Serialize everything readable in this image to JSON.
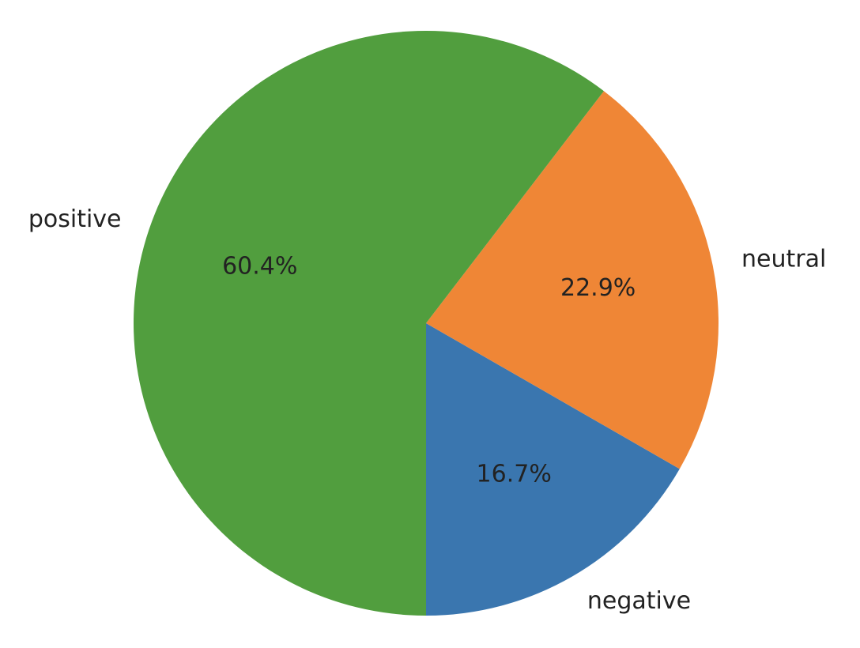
{
  "chart_data": {
    "type": "pie",
    "categories": [
      "negative",
      "neutral",
      "positive"
    ],
    "values": [
      16.7,
      22.9,
      60.4
    ],
    "value_labels": [
      "16.7%",
      "22.9%",
      "60.4%"
    ],
    "colors": [
      "#3a76af",
      "#ef8636",
      "#519e3e"
    ]
  }
}
